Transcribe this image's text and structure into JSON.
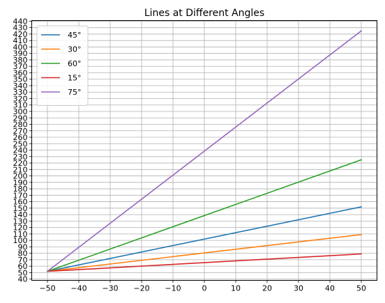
{
  "chart_data": {
    "type": "line",
    "title": "Lines at Different Angles",
    "xlabel": "",
    "ylabel": "",
    "xlim": [
      -55,
      55
    ],
    "ylim": [
      38,
      441
    ],
    "x_ticks": [
      -50,
      -40,
      -30,
      -20,
      -10,
      0,
      10,
      20,
      30,
      40,
      50
    ],
    "y_ticks": [
      40,
      50,
      60,
      70,
      80,
      90,
      100,
      110,
      120,
      130,
      140,
      150,
      160,
      170,
      180,
      190,
      200,
      210,
      220,
      230,
      240,
      250,
      260,
      270,
      280,
      290,
      300,
      310,
      320,
      330,
      340,
      350,
      360,
      370,
      380,
      390,
      400,
      410,
      420,
      430,
      440
    ],
    "grid": true,
    "legend_position": "top-left",
    "x": [
      -50,
      50
    ],
    "series": [
      {
        "name": "45°",
        "color": "#1f77b4",
        "values": [
          52,
          152
        ]
      },
      {
        "name": "30°",
        "color": "#ff7f0e",
        "values": [
          52,
          109
        ]
      },
      {
        "name": "60°",
        "color": "#2ca02c",
        "values": [
          52,
          225
        ]
      },
      {
        "name": "15°",
        "color": "#d62728",
        "values": [
          52,
          79
        ]
      },
      {
        "name": "75°",
        "color": "#9467bd",
        "values": [
          52,
          425
        ]
      }
    ]
  }
}
